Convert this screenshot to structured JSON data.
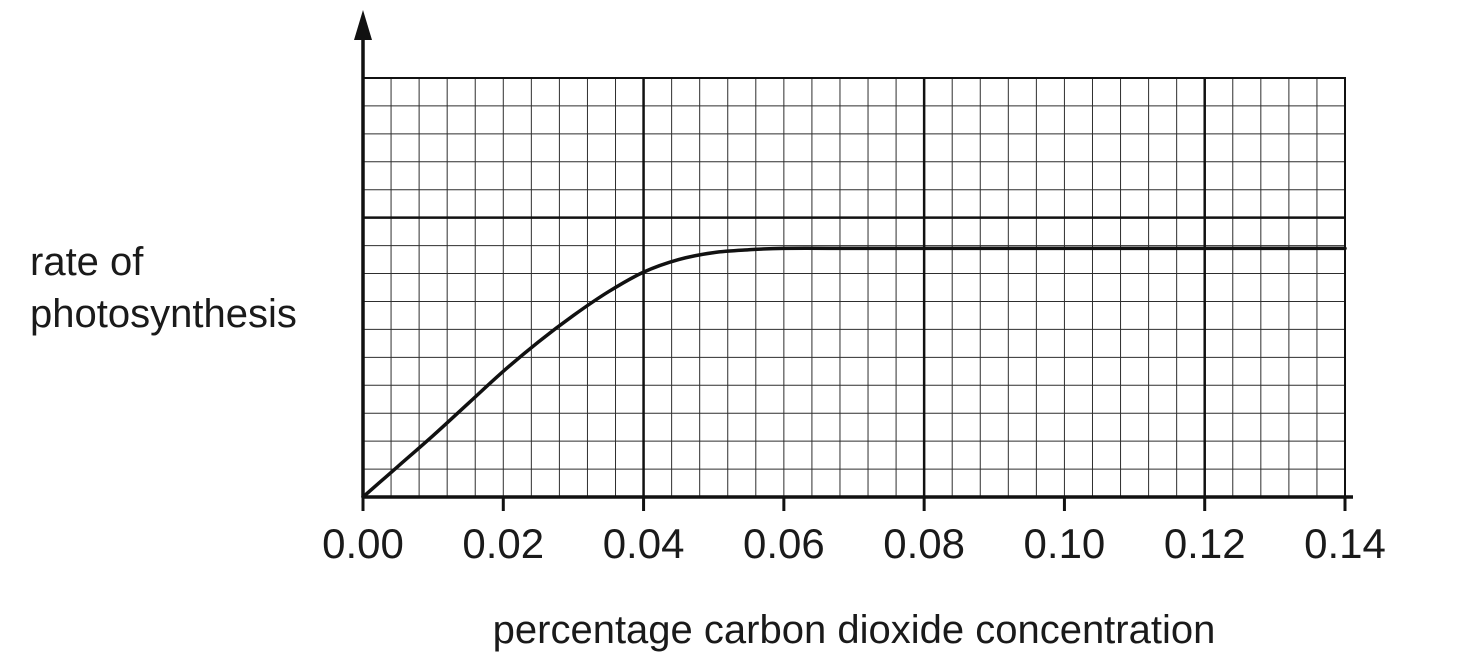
{
  "chart_data": {
    "type": "line",
    "title": "",
    "xlabel": "percentage carbon dioxide concentration",
    "ylabel": "rate of photosynthesis",
    "xlim": [
      0,
      0.14
    ],
    "ylim": [
      0,
      15
    ],
    "y_axis_note": "no numeric scale shown; y values are in minor-gridline units (arbitrary rate units)",
    "x_ticks": [
      0.0,
      0.02,
      0.04,
      0.06,
      0.08,
      0.1,
      0.12,
      0.14
    ],
    "x_tick_labels": [
      "0.00",
      "0.02",
      "0.04",
      "0.06",
      "0.08",
      "0.10",
      "0.12",
      "0.14"
    ],
    "y_ticks": [],
    "y_tick_labels": [],
    "grid": {
      "on": true,
      "x_minor_step": 0.004,
      "y_minor_step": 1,
      "x_major_lines": [
        0.04,
        0.08,
        0.12
      ],
      "y_major_lines": [
        10
      ],
      "minor_color": "#2e2e2e",
      "major_color": "#111111",
      "border_color": "#111111"
    },
    "legend": "none",
    "series": [
      {
        "name": "rate of photosynthesis",
        "color": "#111111",
        "x": [
          0.0,
          0.005,
          0.01,
          0.015,
          0.02,
          0.025,
          0.03,
          0.035,
          0.04,
          0.045,
          0.05,
          0.055,
          0.06,
          0.07,
          0.08,
          0.09,
          0.1,
          0.11,
          0.12,
          0.13,
          0.14
        ],
        "y": [
          0.0,
          1.1,
          2.2,
          3.35,
          4.5,
          5.55,
          6.5,
          7.35,
          8.05,
          8.5,
          8.75,
          8.85,
          8.9,
          8.9,
          8.9,
          8.9,
          8.9,
          8.9,
          8.9,
          8.9,
          8.9
        ]
      }
    ],
    "shape_summary": "curve rises approximately linearly from the origin, bends over between 0.03 and 0.055, and plateaus at a constant rate from about 0.06 to 0.14"
  },
  "labels": {
    "y_axis": "rate of\nphotosynthesis",
    "x_axis": "percentage carbon dioxide concentration"
  }
}
